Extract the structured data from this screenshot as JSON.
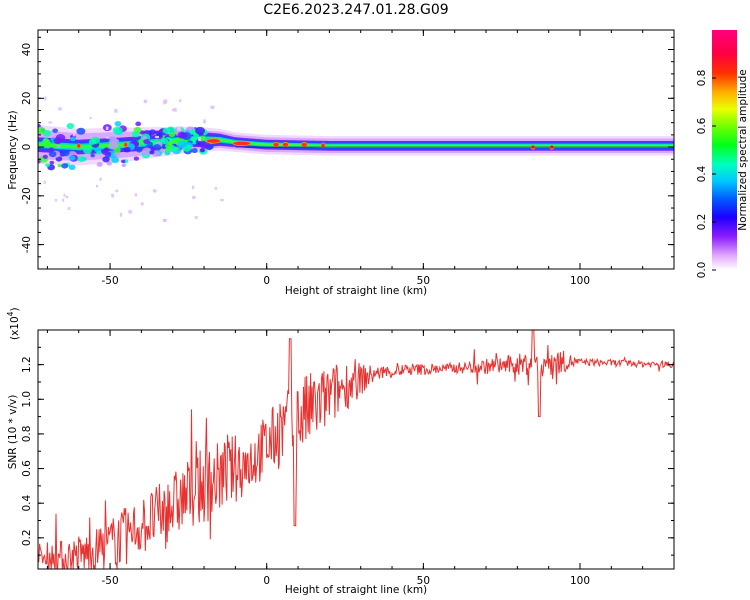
{
  "title": "C2E6.2023.247.01.28.G09",
  "colors": {
    "snr_line": "#e8312f",
    "band_edge": "#f2d9ff",
    "band_outer": "#d9a8ff",
    "band_mid": "#6a2bff",
    "band_core": "#1b4cff",
    "band_inner": "#00e0c0",
    "band_center": "#33ff33",
    "ridge": "#ff2a2a"
  },
  "chart_data": [
    {
      "type": "heatmap",
      "title": "",
      "xlabel": "Height of straight line (km)",
      "ylabel": "Frequency (Hz)",
      "xlim": [
        -73,
        130
      ],
      "ylim": [
        -50,
        48
      ],
      "xticks": [
        -50,
        0,
        50,
        100
      ],
      "yticks": [
        -40,
        -20,
        0,
        20,
        40
      ],
      "grid": false,
      "colorbar": {
        "label": "Normalized spectral amplitude",
        "range": [
          0,
          1
        ],
        "ticks": [
          "0.0",
          "0.2",
          "0.4",
          "0.6",
          "0.8"
        ],
        "tick_values": [
          0.0,
          0.2,
          0.4,
          0.6,
          0.8
        ],
        "colormap": [
          "#ffffff",
          "#d07cff",
          "#6e00ff",
          "#0022ff",
          "#00b4ff",
          "#00ffcc",
          "#00ff33",
          "#99ff00",
          "#ffff00",
          "#ffaa00",
          "#ff3300",
          "#ff0066",
          "#ff0080"
        ]
      },
      "band": {
        "center_frequency": 0,
        "ridge_frequency": [
          [
            -73,
            1
          ],
          [
            -60,
            0
          ],
          [
            -45,
            1
          ],
          [
            -35,
            2
          ],
          [
            -25,
            3
          ],
          [
            -15,
            3
          ],
          [
            -10,
            2
          ],
          [
            0,
            1
          ],
          [
            20,
            0.5
          ],
          [
            60,
            0.5
          ],
          [
            100,
            0.5
          ],
          [
            130,
            0.5
          ]
        ],
        "half_width_strong": [
          [
            -73,
            3
          ],
          [
            -45,
            3
          ],
          [
            -20,
            3
          ],
          [
            -10,
            2
          ],
          [
            130,
            2
          ]
        ],
        "half_width_weak": [
          [
            -73,
            8
          ],
          [
            -45,
            7
          ],
          [
            -20,
            5
          ],
          [
            -10,
            4
          ],
          [
            130,
            4
          ]
        ]
      }
    },
    {
      "type": "line",
      "title": "",
      "xlabel": "Height of straight line (km)",
      "ylabel": "SNR (10 * v/v)",
      "yscale_label": "(x10",
      "yscale_exponent": "4",
      "xlim": [
        -73,
        130
      ],
      "ylim": [
        0.02,
        1.4
      ],
      "xticks": [
        -50,
        0,
        50,
        100
      ],
      "yticks": [
        "0.2",
        "0.4",
        "0.6",
        "0.8",
        "1.0",
        "1.2"
      ],
      "ytick_values": [
        0.2,
        0.4,
        0.6,
        0.8,
        1.0,
        1.2
      ],
      "grid": false,
      "trend": {
        "x": [
          -73,
          -65,
          -55,
          -45,
          -35,
          -25,
          -15,
          -5,
          5,
          15,
          25,
          35,
          45,
          60,
          80,
          90,
          110,
          130
        ],
        "y": [
          0.08,
          0.08,
          0.12,
          0.22,
          0.32,
          0.45,
          0.55,
          0.65,
          0.82,
          0.95,
          1.08,
          1.15,
          1.17,
          1.18,
          1.2,
          1.22,
          1.21,
          1.2
        ]
      },
      "noise_amplitude": {
        "x": [
          -73,
          -45,
          -20,
          0,
          10,
          25,
          35,
          60,
          80,
          90,
          100,
          130
        ],
        "y": [
          0.09,
          0.16,
          0.22,
          0.18,
          0.25,
          0.15,
          0.04,
          0.03,
          0.06,
          0.1,
          0.02,
          0.02
        ]
      },
      "features": [
        {
          "x": 7.5,
          "y": 1.35
        },
        {
          "x": 9,
          "y": 0.27
        },
        {
          "x": 85,
          "y": 1.4
        },
        {
          "x": 87,
          "y": 0.9
        }
      ]
    }
  ]
}
